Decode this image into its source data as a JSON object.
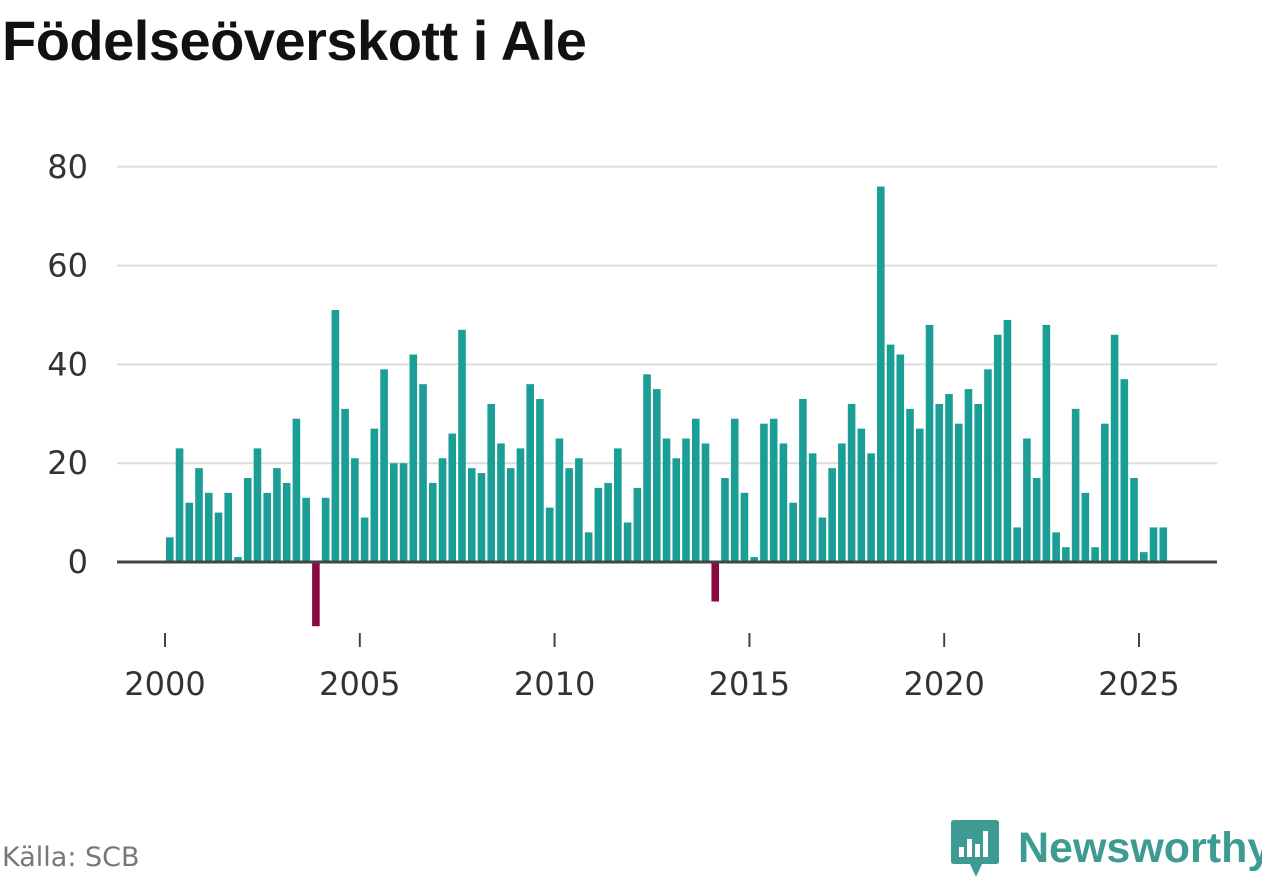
{
  "title": "Födelseöverskott i Ale",
  "source": "Källa: SCB",
  "brand": {
    "name": "Newsworthy",
    "icon": "newsworthy-logo-icon",
    "color": "#3e9b93"
  },
  "colors": {
    "positive": "#1a9e96",
    "negative": "#8b0a3f",
    "grid": "#dddddd",
    "axis": "#444444",
    "text": "#333333"
  },
  "chart_data": {
    "type": "bar",
    "frequency": "quarterly",
    "x_start": "2000 Q1",
    "values": [
      5,
      23,
      12,
      19,
      14,
      10,
      14,
      1,
      17,
      23,
      14,
      19,
      16,
      29,
      13,
      -13,
      13,
      51,
      31,
      21,
      9,
      27,
      39,
      20,
      20,
      42,
      36,
      16,
      21,
      26,
      47,
      19,
      18,
      32,
      24,
      19,
      23,
      36,
      33,
      11,
      25,
      19,
      21,
      6,
      15,
      16,
      23,
      8,
      15,
      38,
      35,
      25,
      21,
      25,
      29,
      24,
      -8,
      17,
      29,
      14,
      1,
      28,
      29,
      24,
      12,
      33,
      22,
      9,
      19,
      24,
      32,
      27,
      22,
      76,
      44,
      42,
      31,
      27,
      48,
      32,
      34,
      28,
      35,
      32,
      39,
      46,
      49,
      7,
      25,
      17,
      48,
      6,
      3,
      31,
      14,
      3,
      28,
      46,
      37,
      17,
      2,
      7,
      7
    ],
    "x_ticks": [
      "2000",
      "2005",
      "2010",
      "2015",
      "2020",
      "2025"
    ],
    "y_ticks": [
      "0",
      "20",
      "40",
      "60",
      "80"
    ],
    "ylim": [
      -16,
      86
    ],
    "grid": true,
    "legend": "none"
  }
}
